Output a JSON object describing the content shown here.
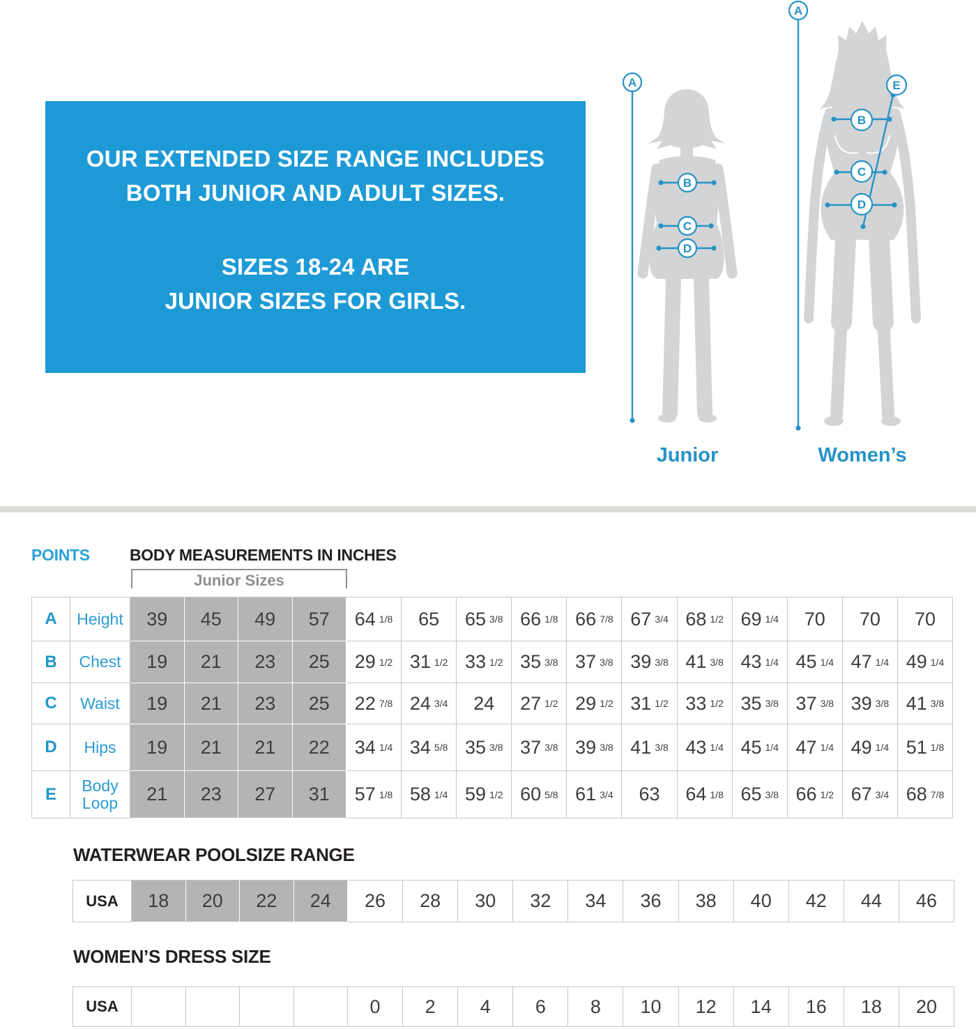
{
  "banner": {
    "paragraph1": "OUR EXTENDED SIZE RANGE INCLUDES\nBOTH JUNIOR AND ADULT SIZES.",
    "paragraph2": "SIZES 18-24 ARE\nJUNIOR SIZES FOR GIRLS."
  },
  "figures": {
    "junior": {
      "label": "Junior",
      "points": [
        "A",
        "B",
        "C",
        "D"
      ]
    },
    "womens": {
      "label": "Women’s",
      "points": [
        "A",
        "B",
        "C",
        "D",
        "E"
      ]
    }
  },
  "measurements": {
    "points_header": "POINTS",
    "title": "BODY MEASUREMENTS IN INCHES",
    "junior_sizes_label": "Junior Sizes",
    "junior_col_count": 4,
    "rows": [
      {
        "point": "A",
        "name": "Height",
        "values": [
          "39",
          "45",
          "49",
          "57",
          "64 1/8",
          "65",
          "65 3/8",
          "66 1/8",
          "66 7/8",
          "67 3/4",
          "68 1/2",
          "69 1/4",
          "70",
          "70",
          "70"
        ]
      },
      {
        "point": "B",
        "name": "Chest",
        "values": [
          "19",
          "21",
          "23",
          "25",
          "29 1/2",
          "31 1/2",
          "33 1/2",
          "35 3/8",
          "37 3/8",
          "39 3/8",
          "41 3/8",
          "43 1/4",
          "45 1/4",
          "47 1/4",
          "49 1/4"
        ]
      },
      {
        "point": "C",
        "name": "Waist",
        "values": [
          "19",
          "21",
          "23",
          "25",
          "22 7/8",
          "24 3/4",
          "24",
          "27 1/2",
          "29 1/2",
          "31 1/2",
          "33 1/2",
          "35 3/8",
          "37 3/8",
          "39 3/8",
          "41 3/8"
        ]
      },
      {
        "point": "D",
        "name": "Hips",
        "values": [
          "19",
          "21",
          "21",
          "22",
          "34 1/4",
          "34 5/8",
          "35 3/8",
          "37 3/8",
          "39 3/8",
          "41 3/8",
          "43 1/4",
          "45 1/4",
          "47 1/4",
          "49 1/4",
          "51 1/8"
        ]
      },
      {
        "point": "E",
        "name": "Body Loop",
        "values": [
          "21",
          "23",
          "27",
          "31",
          "57 1/8",
          "58 1/4",
          "59 1/2",
          "60 5/8",
          "61 3/4",
          "63",
          "64 1/8",
          "65 3/8",
          "66 1/2",
          "67 3/4",
          "68 7/8"
        ]
      }
    ]
  },
  "poolsize": {
    "title": "WATERWEAR POOLSIZE RANGE",
    "row_label": "USA",
    "gray_count": 4,
    "sizes": [
      "18",
      "20",
      "22",
      "24",
      "26",
      "28",
      "30",
      "32",
      "34",
      "36",
      "38",
      "40",
      "42",
      "44",
      "46"
    ]
  },
  "dress": {
    "title": "WOMEN’S DRESS SIZE",
    "row_label": "USA",
    "empty_count": 4,
    "sizes": [
      "0",
      "2",
      "4",
      "6",
      "8",
      "10",
      "12",
      "14",
      "16",
      "18",
      "20"
    ]
  },
  "colors": {
    "banner_blue": "#1d9ad6",
    "annotation_teal": "#2693c6",
    "junior_cell_gray": "#b4b4b4",
    "heading_black": "#231f20"
  }
}
